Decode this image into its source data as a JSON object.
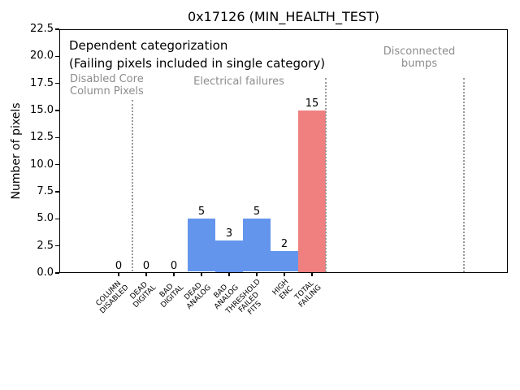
{
  "chart_data": {
    "type": "bar",
    "title": "0x17126 (MIN_HEALTH_TEST)",
    "ylabel": "Number of pixels",
    "xlabel": "",
    "ylim": [
      0,
      22.5
    ],
    "yticks": [
      "0.0",
      "2.5",
      "5.0",
      "7.5",
      "10.0",
      "12.5",
      "15.0",
      "17.5",
      "20.0",
      "22.5"
    ],
    "grid": false,
    "legend": null,
    "categories": [
      "COLUMN\nDISABLED",
      "DEAD\nDIGITAL",
      "BAD\nDIGITAL",
      "DEAD\nANALOG",
      "BAD\nANALOG",
      "THRESHOLD\nFAILED\nFITS",
      "HIGH\nENC",
      "TOTAL\nFAILING"
    ],
    "values": [
      0,
      0,
      0,
      5,
      3,
      5,
      2,
      15
    ],
    "value_labels": [
      "0",
      "0",
      "0",
      "5",
      "3",
      "5",
      "2",
      "15"
    ],
    "bar_colors": [
      "#6495ed",
      "#6495ed",
      "#6495ed",
      "#6495ed",
      "#6495ed",
      "#6495ed",
      "#6495ed",
      "#f08080"
    ],
    "annotations": {
      "heading": "Dependent categorization",
      "subheading": "(Failing pixels included in single category)"
    },
    "sections": [
      {
        "label": "Disabled Core\nColumn Pixels"
      },
      {
        "label": "Electrical failures"
      },
      {
        "label": "Disconnected\nbumps"
      }
    ],
    "separators": [
      {
        "x_units": 0.5,
        "ymax": 16
      },
      {
        "x_units": 7.5,
        "ymax": 18
      },
      {
        "x_units": 12.5,
        "ymax": 18
      }
    ],
    "colors": {
      "bar_blue": "#6495ed",
      "bar_red": "#f08080",
      "section_text": "#8c8c8c",
      "separator": "#999999",
      "axis": "#000000"
    }
  }
}
